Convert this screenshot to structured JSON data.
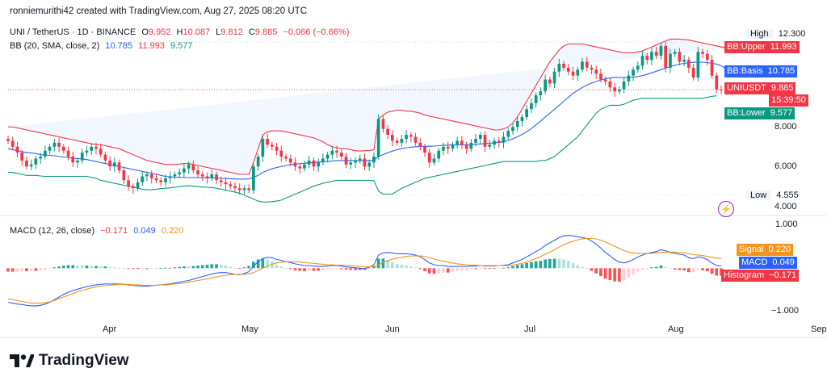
{
  "header": {
    "attribution": "ronniemurithi42 created with TradingView.com, Aug 27, 2025 08:20 UTC"
  },
  "legend": {
    "symbol": "UNI / TetherUS · 1D · BINANCE",
    "o_label": "O",
    "o": "9.952",
    "h_label": "H",
    "h": "10.087",
    "l_label": "L",
    "l": "9.812",
    "c_label": "C",
    "c": "9.885",
    "change": "−0.066 (−0.66%)",
    "bb_name": "BB (20, SMA, close, 2)",
    "bb_basis": "10.785",
    "bb_upper": "11.993",
    "bb_lower": "9.577",
    "macd_name": "MACD (12, 26, close)",
    "macd_hist": "−0.171",
    "macd_line": "0.049",
    "macd_signal": "0.220"
  },
  "price_axis": {
    "high_label": "High",
    "high_value": "12.300",
    "low_label": "Low",
    "low_value": "4.555",
    "ticks": [
      "8.000",
      "6.000",
      "4.000"
    ],
    "tags": {
      "bb_upper_label": "BB:Upper",
      "bb_upper_value": "11.993",
      "bb_basis_label": "BB:Basis",
      "bb_basis_value": "10.785",
      "symbol_label": "UNIUSDT",
      "symbol_value": "9.885",
      "countdown": "15:39:50",
      "bb_lower_label": "BB:Lower",
      "bb_lower_value": "9.577"
    }
  },
  "macd_axis": {
    "ticks": [
      "1.000",
      "−1.000"
    ],
    "tags": {
      "signal_label": "Signal",
      "signal_value": "0.220",
      "macd_label": "MACD",
      "macd_value": "0.049",
      "hist_label": "Histogram",
      "hist_value": "−0.171"
    }
  },
  "time_axis": {
    "labels": [
      "Apr",
      "May",
      "Jun",
      "Jul",
      "Aug",
      "Sep"
    ]
  },
  "brand": {
    "name": "TradingView"
  },
  "colors": {
    "up": "#089981",
    "down": "#f23645",
    "bb_upper": "#f23645",
    "bb_basis": "#2962ff",
    "bb_lower": "#089981",
    "macd": "#2962ff",
    "signal": "#f7931a"
  },
  "chart_data": {
    "type": "candlestick",
    "price_ylim": [
      3.6,
      13.2
    ],
    "macd_ylim": [
      -1.25,
      1.15
    ],
    "month_ticks": [
      {
        "label": "Apr",
        "day": 22
      },
      {
        "label": "May",
        "day": 52
      },
      {
        "label": "Jun",
        "day": 83
      },
      {
        "label": "Jul",
        "day": 113
      },
      {
        "label": "Aug",
        "day": 144
      },
      {
        "label": "Sep",
        "day": 175
      }
    ],
    "closes": [
      7.3,
      7.0,
      6.7,
      6.3,
      6.0,
      6.1,
      6.4,
      6.5,
      6.8,
      7.0,
      7.2,
      7.0,
      6.8,
      6.5,
      6.2,
      6.3,
      6.7,
      6.8,
      7.0,
      6.9,
      6.6,
      6.3,
      6.0,
      6.2,
      5.8,
      5.3,
      5.0,
      4.9,
      5.2,
      5.5,
      5.6,
      5.4,
      5.3,
      5.2,
      5.4,
      5.5,
      5.6,
      5.7,
      5.9,
      6.1,
      5.8,
      5.6,
      5.5,
      5.4,
      5.6,
      5.3,
      5.2,
      5.1,
      5.0,
      4.9,
      4.8,
      4.9,
      4.8,
      6.0,
      6.5,
      7.4,
      7.1,
      7.0,
      6.8,
      6.5,
      6.4,
      6.2,
      6.0,
      5.9,
      6.1,
      6.3,
      6.0,
      6.2,
      6.4,
      6.6,
      6.8,
      6.7,
      6.5,
      6.1,
      6.2,
      6.3,
      6.4,
      6.0,
      6.2,
      6.5,
      8.4,
      7.9,
      7.6,
      7.3,
      7.2,
      7.4,
      7.6,
      7.5,
      7.2,
      7.0,
      6.7,
      6.2,
      6.4,
      6.8,
      7.0,
      6.9,
      7.1,
      7.3,
      7.1,
      6.9,
      7.2,
      7.4,
      7.6,
      7.0,
      7.1,
      7.3,
      7.2,
      7.5,
      7.8,
      8.0,
      8.3,
      8.5,
      8.9,
      9.2,
      9.6,
      9.8,
      10.4,
      10.2,
      10.8,
      11.2,
      11.0,
      10.8,
      10.6,
      10.9,
      11.3,
      11.0,
      10.9,
      10.7,
      10.4,
      10.3,
      10.0,
      9.8,
      9.9,
      10.3,
      10.6,
      10.9,
      11.1,
      11.6,
      11.4,
      11.8,
      11.6,
      12.1,
      11.0,
      11.7,
      11.8,
      11.3,
      11.4,
      11.0,
      10.5,
      11.8,
      11.7,
      11.4,
      10.6,
      9.9,
      9.885
    ],
    "bb_upper": [
      8.0,
      8.0,
      7.95,
      7.9,
      7.85,
      7.8,
      7.75,
      7.7,
      7.65,
      7.6,
      7.55,
      7.5,
      7.45,
      7.4,
      7.35,
      7.3,
      7.25,
      7.2,
      7.15,
      7.1,
      7.1,
      7.05,
      7.0,
      6.95,
      6.9,
      6.8,
      6.7,
      6.6,
      6.5,
      6.4,
      6.3,
      6.25,
      6.2,
      6.15,
      6.1,
      6.1,
      6.1,
      6.12,
      6.15,
      6.15,
      6.1,
      6.05,
      6.0,
      5.95,
      5.9,
      5.85,
      5.8,
      5.75,
      5.7,
      5.65,
      5.6,
      5.6,
      5.6,
      6.2,
      6.9,
      7.6,
      7.75,
      7.8,
      7.8,
      7.8,
      7.75,
      7.7,
      7.65,
      7.6,
      7.55,
      7.5,
      7.45,
      7.35,
      7.25,
      7.1,
      7.0,
      6.95,
      6.9,
      6.9,
      6.85,
      6.8,
      6.78,
      6.8,
      6.8,
      6.85,
      8.4,
      8.6,
      8.75,
      8.8,
      8.85,
      8.85,
      8.8,
      8.8,
      8.75,
      8.7,
      8.6,
      8.55,
      8.5,
      8.45,
      8.4,
      8.35,
      8.3,
      8.25,
      8.2,
      8.15,
      8.1,
      8.05,
      8.0,
      7.95,
      7.9,
      7.85,
      7.85,
      7.9,
      8.0,
      8.2,
      8.5,
      8.9,
      9.3,
      9.7,
      10.1,
      10.5,
      10.9,
      11.3,
      11.6,
      11.9,
      12.1,
      12.2,
      12.2,
      12.2,
      12.2,
      12.15,
      12.1,
      12.05,
      12.0,
      11.95,
      11.9,
      11.85,
      11.8,
      11.75,
      11.75,
      11.75,
      11.8,
      11.85,
      11.95,
      12.05,
      12.15,
      12.25,
      12.35,
      12.45,
      12.45,
      12.45,
      12.42,
      12.4,
      12.35,
      12.3,
      12.25,
      12.2,
      12.15,
      12.1,
      12.05,
      12.02,
      11.993
    ],
    "bb_basis": [
      6.9,
      6.85,
      6.8,
      6.75,
      6.7,
      6.68,
      6.65,
      6.6,
      6.58,
      6.56,
      6.54,
      6.5,
      6.48,
      6.45,
      6.42,
      6.4,
      6.38,
      6.35,
      6.3,
      6.25,
      6.2,
      6.15,
      6.1,
      6.05,
      6.0,
      5.95,
      5.9,
      5.85,
      5.8,
      5.75,
      5.7,
      5.65,
      5.6,
      5.55,
      5.5,
      5.48,
      5.46,
      5.45,
      5.44,
      5.44,
      5.44,
      5.44,
      5.43,
      5.42,
      5.42,
      5.41,
      5.4,
      5.39,
      5.38,
      5.37,
      5.36,
      5.36,
      5.37,
      5.45,
      5.55,
      5.7,
      5.8,
      5.88,
      5.95,
      6.0,
      6.05,
      6.1,
      6.12,
      6.14,
      6.16,
      6.18,
      6.2,
      6.22,
      6.24,
      6.26,
      6.28,
      6.3,
      6.3,
      6.3,
      6.3,
      6.3,
      6.3,
      6.3,
      6.3,
      6.32,
      6.5,
      6.6,
      6.7,
      6.78,
      6.85,
      6.9,
      6.95,
      6.98,
      7.0,
      7.02,
      7.02,
      7.02,
      7.03,
      7.05,
      7.07,
      7.08,
      7.09,
      7.1,
      7.1,
      7.1,
      7.1,
      7.12,
      7.14,
      7.16,
      7.18,
      7.2,
      7.22,
      7.26,
      7.32,
      7.4,
      7.5,
      7.62,
      7.76,
      7.92,
      8.1,
      8.3,
      8.5,
      8.7,
      8.9,
      9.1,
      9.3,
      9.5,
      9.7,
      9.85,
      10.0,
      10.12,
      10.22,
      10.3,
      10.38,
      10.44,
      10.48,
      10.5,
      10.5,
      10.5,
      10.5,
      10.52,
      10.55,
      10.6,
      10.66,
      10.74,
      10.82,
      10.9,
      10.98,
      11.05,
      11.12,
      11.18,
      11.22,
      11.25,
      11.27,
      11.28,
      11.28,
      11.26,
      11.22,
      11.18,
      11.1,
      10.95,
      10.785
    ],
    "bb_lower": [
      5.7,
      5.7,
      5.65,
      5.6,
      5.55,
      5.55,
      5.55,
      5.52,
      5.5,
      5.5,
      5.5,
      5.5,
      5.5,
      5.5,
      5.5,
      5.5,
      5.5,
      5.5,
      5.45,
      5.4,
      5.3,
      5.25,
      5.2,
      5.15,
      5.1,
      5.05,
      5.0,
      4.95,
      4.9,
      4.85,
      4.82,
      4.82,
      4.85,
      4.88,
      4.9,
      4.92,
      4.95,
      4.98,
      5.0,
      5.02,
      5.0,
      4.98,
      4.96,
      4.95,
      4.93,
      4.9,
      4.85,
      4.8,
      4.75,
      4.7,
      4.65,
      4.55,
      4.45,
      4.35,
      4.25,
      4.2,
      4.2,
      4.22,
      4.25,
      4.3,
      4.4,
      4.5,
      4.6,
      4.7,
      4.8,
      4.9,
      5.0,
      5.08,
      5.15,
      5.2,
      5.25,
      5.3,
      5.3,
      5.3,
      5.3,
      5.3,
      5.3,
      5.3,
      5.3,
      5.28,
      4.75,
      4.6,
      4.6,
      4.6,
      4.75,
      4.9,
      5.0,
      5.1,
      5.2,
      5.3,
      5.4,
      5.45,
      5.5,
      5.55,
      5.6,
      5.65,
      5.7,
      5.75,
      5.8,
      5.85,
      5.9,
      5.95,
      6.0,
      6.05,
      6.1,
      6.15,
      6.2,
      6.25,
      6.25,
      6.25,
      6.25,
      6.25,
      6.25,
      6.25,
      6.25,
      6.3,
      6.3,
      6.4,
      6.5,
      6.7,
      6.9,
      7.1,
      7.3,
      7.5,
      7.8,
      8.1,
      8.4,
      8.7,
      8.9,
      9.0,
      9.1,
      9.1,
      9.1,
      9.15,
      9.25,
      9.35,
      9.4,
      9.45,
      9.45,
      9.45,
      9.45,
      9.45,
      9.45,
      9.45,
      9.45,
      9.45,
      9.45,
      9.45,
      9.45,
      9.45,
      9.45,
      9.5,
      9.55,
      9.577
    ],
    "macd": [
      -0.78,
      -0.8,
      -0.82,
      -0.83,
      -0.85,
      -0.86,
      -0.86,
      -0.85,
      -0.82,
      -0.78,
      -0.72,
      -0.66,
      -0.6,
      -0.55,
      -0.51,
      -0.48,
      -0.45,
      -0.42,
      -0.4,
      -0.38,
      -0.37,
      -0.36,
      -0.36,
      -0.36,
      -0.36,
      -0.37,
      -0.38,
      -0.39,
      -0.4,
      -0.41,
      -0.41,
      -0.4,
      -0.39,
      -0.38,
      -0.37,
      -0.36,
      -0.34,
      -0.32,
      -0.3,
      -0.28,
      -0.25,
      -0.22,
      -0.19,
      -0.16,
      -0.13,
      -0.11,
      -0.1,
      -0.1,
      -0.12,
      -0.14,
      -0.15,
      -0.12,
      -0.08,
      0.05,
      0.15,
      0.22,
      0.25,
      0.24,
      0.2,
      0.18,
      0.15,
      0.13,
      0.1,
      0.08,
      0.06,
      0.06,
      0.05,
      0.04,
      0.04,
      0.05,
      0.06,
      0.06,
      0.05,
      0.03,
      0.02,
      0.01,
      0.0,
      -0.01,
      0.02,
      0.08,
      0.3,
      0.35,
      0.36,
      0.35,
      0.33,
      0.33,
      0.33,
      0.32,
      0.3,
      0.26,
      0.2,
      0.12,
      0.08,
      0.06,
      0.06,
      0.04,
      0.04,
      0.04,
      0.04,
      0.04,
      0.05,
      0.05,
      0.06,
      0.05,
      0.05,
      0.05,
      0.06,
      0.07,
      0.08,
      0.12,
      0.16,
      0.2,
      0.26,
      0.32,
      0.38,
      0.44,
      0.52,
      0.58,
      0.64,
      0.7,
      0.74,
      0.75,
      0.74,
      0.72,
      0.7,
      0.68,
      0.62,
      0.55,
      0.46,
      0.36,
      0.28,
      0.2,
      0.14,
      0.12,
      0.15,
      0.2,
      0.26,
      0.3,
      0.34,
      0.36,
      0.38,
      0.42,
      0.4,
      0.36,
      0.34,
      0.32,
      0.3,
      0.24,
      0.22,
      0.26,
      0.24,
      0.2,
      0.12,
      0.06,
      0.049
    ],
    "signal": [
      -0.7,
      -0.72,
      -0.74,
      -0.76,
      -0.78,
      -0.8,
      -0.8,
      -0.8,
      -0.79,
      -0.77,
      -0.74,
      -0.7,
      -0.66,
      -0.62,
      -0.58,
      -0.54,
      -0.51,
      -0.48,
      -0.45,
      -0.43,
      -0.41,
      -0.4,
      -0.39,
      -0.38,
      -0.37,
      -0.37,
      -0.37,
      -0.38,
      -0.38,
      -0.39,
      -0.39,
      -0.39,
      -0.39,
      -0.38,
      -0.38,
      -0.37,
      -0.36,
      -0.35,
      -0.34,
      -0.32,
      -0.3,
      -0.28,
      -0.26,
      -0.24,
      -0.22,
      -0.2,
      -0.18,
      -0.16,
      -0.15,
      -0.14,
      -0.14,
      -0.14,
      -0.13,
      -0.1,
      -0.05,
      0.0,
      0.05,
      0.09,
      0.12,
      0.14,
      0.15,
      0.15,
      0.15,
      0.14,
      0.13,
      0.12,
      0.11,
      0.1,
      0.09,
      0.08,
      0.08,
      0.07,
      0.07,
      0.06,
      0.06,
      0.05,
      0.04,
      0.03,
      0.03,
      0.04,
      0.08,
      0.13,
      0.17,
      0.21,
      0.23,
      0.25,
      0.27,
      0.28,
      0.28,
      0.28,
      0.27,
      0.24,
      0.21,
      0.18,
      0.16,
      0.14,
      0.12,
      0.1,
      0.09,
      0.08,
      0.07,
      0.07,
      0.06,
      0.06,
      0.06,
      0.06,
      0.06,
      0.06,
      0.06,
      0.07,
      0.09,
      0.11,
      0.14,
      0.18,
      0.22,
      0.27,
      0.32,
      0.37,
      0.42,
      0.48,
      0.54,
      0.58,
      0.62,
      0.65,
      0.67,
      0.68,
      0.68,
      0.67,
      0.64,
      0.6,
      0.55,
      0.5,
      0.45,
      0.4,
      0.37,
      0.35,
      0.34,
      0.34,
      0.34,
      0.34,
      0.35,
      0.36,
      0.37,
      0.37,
      0.37,
      0.36,
      0.35,
      0.33,
      0.31,
      0.3,
      0.29,
      0.27,
      0.25,
      0.23,
      0.22
    ]
  }
}
